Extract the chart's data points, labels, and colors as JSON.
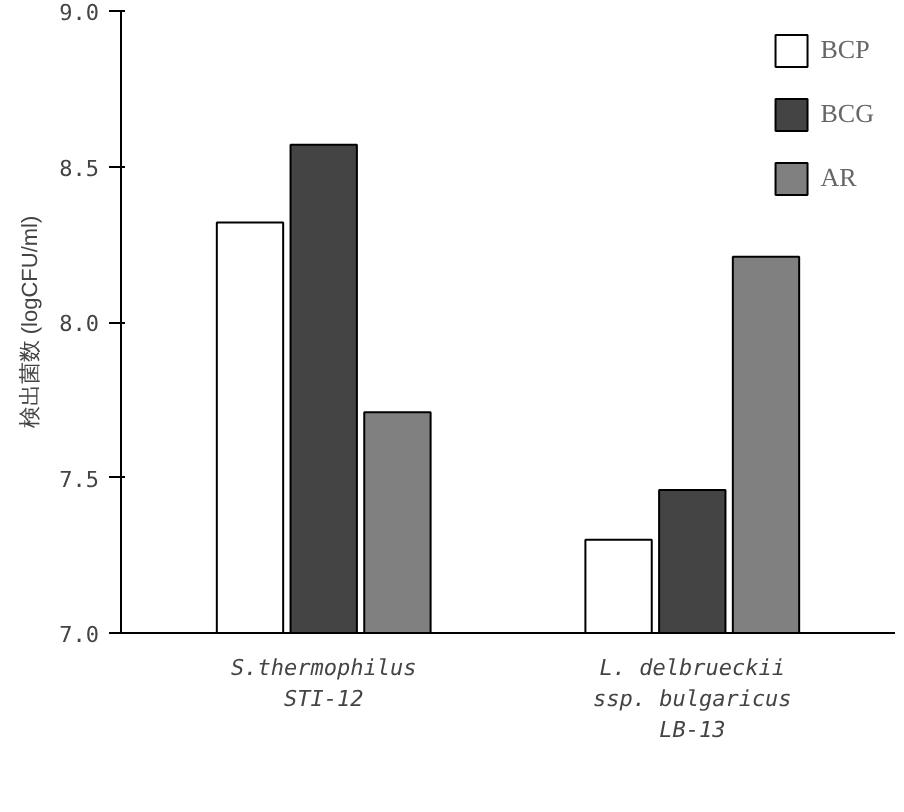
{
  "chart_data": {
    "type": "bar",
    "ylabel": "検出菌数 (logCFU/ml)",
    "categories": [
      "S.thermophilus\nSTI-12",
      "L. delbrueckii\nssp. bulgaricus\nLB-13"
    ],
    "series": [
      {
        "name": "BCP",
        "color": "#ffffff",
        "values": [
          8.32,
          7.3
        ]
      },
      {
        "name": "BCG",
        "color": "#444444",
        "values": [
          8.57,
          7.46
        ]
      },
      {
        "name": "AR",
        "color": "#808080",
        "values": [
          7.71,
          8.21
        ]
      }
    ],
    "ylim": [
      7.0,
      9.0
    ],
    "yticks": [
      {
        "value": 7.0,
        "label": "7.0"
      },
      {
        "value": 7.5,
        "label": "7.5"
      },
      {
        "value": 8.0,
        "label": "8.0"
      },
      {
        "value": 8.5,
        "label": "8.5"
      },
      {
        "value": 9.0,
        "label": "9.0"
      }
    ],
    "legend": "top right",
    "grid": false
  }
}
